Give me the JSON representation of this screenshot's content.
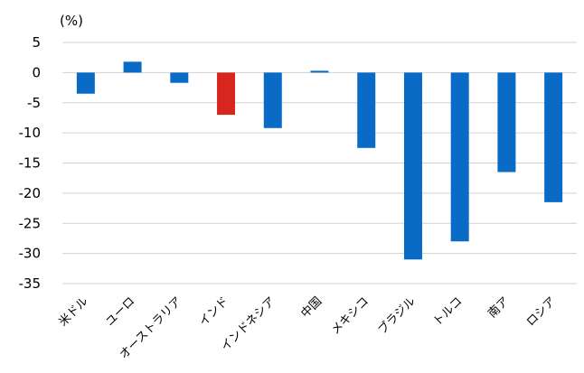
{
  "chart_data": {
    "type": "bar",
    "unit_label": "(%)",
    "categories": [
      "米ドル",
      "ユーロ",
      "オーストラリア",
      "インド",
      "インドネシア",
      "中国",
      "メキシコ",
      "ブラジル",
      "トルコ",
      "南ア",
      "ロシア"
    ],
    "values": [
      -3.5,
      1.8,
      -1.7,
      -7.0,
      -9.2,
      0.3,
      -12.5,
      -31.0,
      -28.0,
      -16.5,
      -21.5
    ],
    "bar_colors": [
      "#0a6bc7",
      "#0a6bc7",
      "#0a6bc7",
      "#d7261e",
      "#0a6bc7",
      "#0a6bc7",
      "#0a6bc7",
      "#0a6bc7",
      "#0a6bc7",
      "#0a6bc7",
      "#0a6bc7"
    ],
    "ylim": [
      -35,
      5
    ],
    "yticks": [
      5,
      0,
      -5,
      -10,
      -15,
      -20,
      -25,
      -30,
      -35
    ],
    "grid": true,
    "legend": "none"
  }
}
